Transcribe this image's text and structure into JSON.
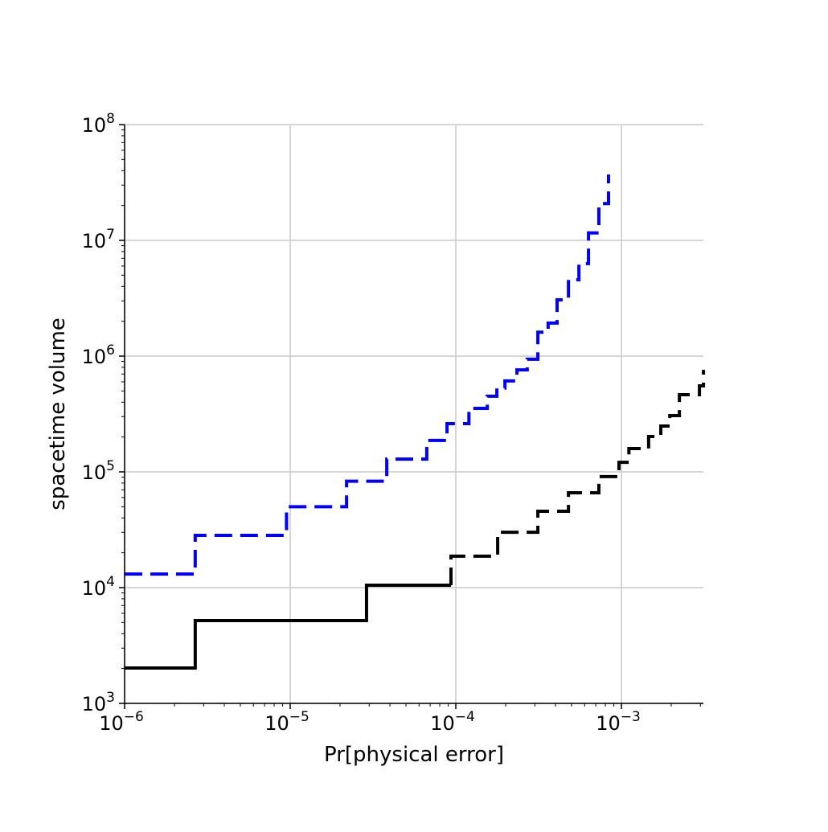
{
  "chart_data": {
    "type": "line",
    "title": "",
    "xlabel": "Pr[physical error]",
    "ylabel": "spacetime volume",
    "xscale": "log",
    "yscale": "log",
    "xlim": [
      1e-06,
      0.00313
    ],
    "ylim": [
      1000.0,
      100000000.0
    ],
    "grid": true,
    "legend": "none",
    "xticks": [
      {
        "value": 1e-06,
        "base": "10",
        "exp": "−6"
      },
      {
        "value": 1e-05,
        "base": "10",
        "exp": "−5"
      },
      {
        "value": 0.0001,
        "base": "10",
        "exp": "−4"
      },
      {
        "value": 0.001,
        "base": "10",
        "exp": "−3"
      }
    ],
    "yticks": [
      {
        "value": 1000.0,
        "base": "10",
        "exp": "3"
      },
      {
        "value": 10000.0,
        "base": "10",
        "exp": "4"
      },
      {
        "value": 100000.0,
        "base": "10",
        "exp": "5"
      },
      {
        "value": 1000000.0,
        "base": "10",
        "exp": "6"
      },
      {
        "value": 10000000.0,
        "base": "10",
        "exp": "7"
      },
      {
        "value": 100000000.0,
        "base": "10",
        "exp": "8"
      }
    ],
    "series": [
      {
        "style": "dashed",
        "color": "#0000ff",
        "drawstyle": "steps",
        "x": [
          1e-06,
          2.67e-06,
          9.5e-06,
          2.19e-05,
          3.83e-05,
          6.68e-05,
          8.85e-05,
          0.00012,
          0.000155,
          0.000177,
          0.000198,
          0.000234,
          0.00027,
          0.000313,
          0.000361,
          0.000409,
          0.000479,
          0.000554,
          0.000633,
          0.000731,
          0.000836
        ],
        "y": [
          13100.0,
          28300.0,
          50000.0,
          83000.0,
          129000.0,
          187000.0,
          261000.0,
          354000.0,
          450000.0,
          530000.0,
          610000.0,
          760000.0,
          940000.0,
          1610000.0,
          1930000.0,
          3060000.0,
          4570000.0,
          6300000.0,
          11600000.0,
          20800000.0,
          37000000.0
        ]
      },
      {
        "style": "solid",
        "color": "#000000",
        "drawstyle": "steps",
        "x": [
          1e-06,
          2.67e-06,
          2.89e-05,
          9.35e-05
        ],
        "y": [
          2020.0,
          5190.0,
          10500.0,
          10500.0
        ]
      },
      {
        "style": "dashed",
        "color": "#000000",
        "drawstyle": "steps",
        "x": [
          9.35e-05,
          9.35e-05,
          0.000179,
          0.000313,
          0.000479,
          0.000731,
          0.000967,
          0.00111,
          0.00146,
          0.00173,
          0.00196,
          0.00224,
          0.00296,
          0.00313
        ],
        "y": [
          10500.0,
          18700.0,
          30100.0,
          45700.0,
          66000.0,
          91000.0,
          121000.0,
          159000.0,
          202000.0,
          249000.0,
          306000.0,
          464000.0,
          553000.0,
          760000.0
        ]
      }
    ]
  }
}
